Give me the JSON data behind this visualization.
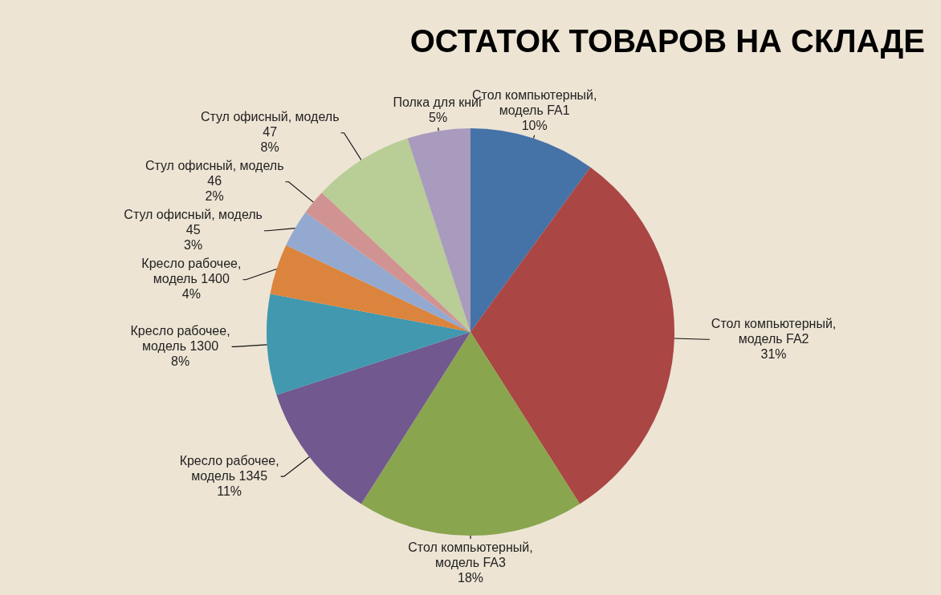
{
  "chart_data": {
    "type": "pie",
    "title": "ОСТАТОК ТОВАРОВ НА СКЛАДЕ",
    "categories": [
      "Стол компьютерный, модель FA1",
      "Стол компьютерный, модель FA2",
      "Стол компьютерный, модель FA3",
      "Кресло рабочее, модель 1345",
      "Кресло рабочее, модель 1300",
      "Кресло рабочее, модель 1400",
      "Стул офисный, модель 45",
      "Стул офисный, модель 46",
      "Стул офисный, модель 47",
      "Полка для книг"
    ],
    "values": [
      10,
      31,
      18,
      11,
      8,
      4,
      3,
      2,
      8,
      5
    ],
    "colors": [
      "#4572a7",
      "#aa4643",
      "#89a54e",
      "#71588f",
      "#4198af",
      "#db843d",
      "#93a9cf",
      "#d19392",
      "#b9cd96",
      "#a99bbd"
    ],
    "value_labels": [
      "10%",
      "31%",
      "18%",
      "11%",
      "8%",
      "4%",
      "3%",
      "2%",
      "8%",
      "5%"
    ],
    "legend": false
  }
}
